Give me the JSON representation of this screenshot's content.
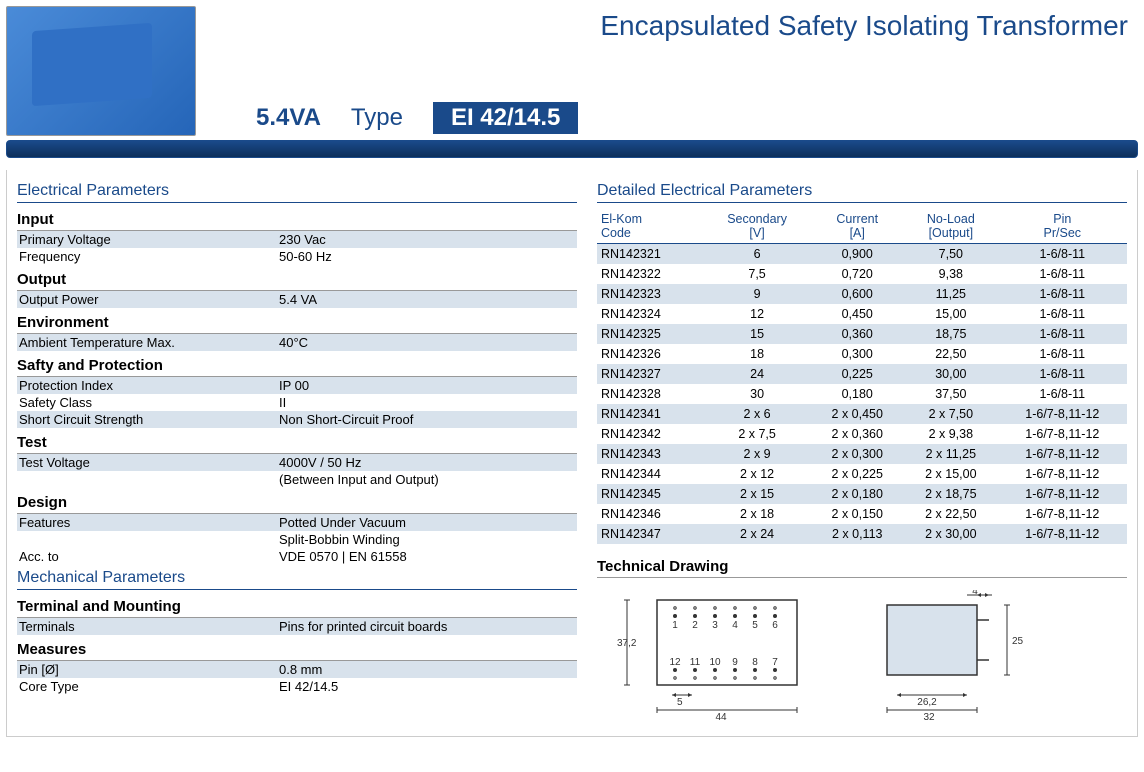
{
  "header": {
    "title": "Encapsulated Safety Isolating Transformer",
    "power": "5.4VA",
    "type_label": "Type",
    "type_value": "EI 42/14.5"
  },
  "electrical_title": "Electrical Parameters",
  "mechanical_title": "Mechanical Parameters",
  "detailed_title": "Detailed Electrical Parameters",
  "tech_drawing_title": "Technical Drawing",
  "sections": {
    "input": "Input",
    "output": "Output",
    "environment": "Environment",
    "safety": "Safty and Protection",
    "test": "Test",
    "design": "Design",
    "terminal": "Terminal and Mounting",
    "measures": "Measures"
  },
  "params": {
    "primary_voltage": {
      "label": "Primary Voltage",
      "value": "230 Vac"
    },
    "frequency": {
      "label": "Frequency",
      "value": "50-60 Hz"
    },
    "output_power": {
      "label": "Output Power",
      "value": "5.4 VA"
    },
    "ambient_temp": {
      "label": "Ambient Temperature Max.",
      "value": "40°C"
    },
    "protection_index": {
      "label": "Protection Index",
      "value": "IP 00"
    },
    "safety_class": {
      "label": "Safety Class",
      "value": "II"
    },
    "short_circuit": {
      "label": "Short Circuit Strength",
      "value": "Non Short-Circuit Proof"
    },
    "test_voltage": {
      "label": "Test Voltage",
      "value": "4000V / 50 Hz"
    },
    "test_voltage_note": "(Between Input and Output)",
    "features": {
      "label": "Features",
      "value": "Potted Under Vacuum"
    },
    "features_2": "Split-Bobbin Winding",
    "acc_to": {
      "label": "Acc. to",
      "value": "VDE 0570 | EN 61558"
    },
    "terminals": {
      "label": "Terminals",
      "value": "Pins for printed circuit boards"
    },
    "pin": {
      "label": "Pin [Ø]",
      "value": "0.8 mm"
    },
    "core_type": {
      "label": "Core Type",
      "value": "EI 42/14.5"
    }
  },
  "detail_headers": {
    "code": "El-Kom\nCode",
    "secondary": "Secondary\n[V]",
    "current": "Current\n[A]",
    "noload": "No-Load\n[Output]",
    "pin": "Pin\nPr/Sec"
  },
  "detail_rows": [
    {
      "code": "RN142321",
      "sec": "6",
      "cur": "0,900",
      "nl": "7,50",
      "pin": "1-6/8-11"
    },
    {
      "code": "RN142322",
      "sec": "7,5",
      "cur": "0,720",
      "nl": "9,38",
      "pin": "1-6/8-11"
    },
    {
      "code": "RN142323",
      "sec": "9",
      "cur": "0,600",
      "nl": "11,25",
      "pin": "1-6/8-11"
    },
    {
      "code": "RN142324",
      "sec": "12",
      "cur": "0,450",
      "nl": "15,00",
      "pin": "1-6/8-11"
    },
    {
      "code": "RN142325",
      "sec": "15",
      "cur": "0,360",
      "nl": "18,75",
      "pin": "1-6/8-11"
    },
    {
      "code": "RN142326",
      "sec": "18",
      "cur": "0,300",
      "nl": "22,50",
      "pin": "1-6/8-11"
    },
    {
      "code": "RN142327",
      "sec": "24",
      "cur": "0,225",
      "nl": "30,00",
      "pin": "1-6/8-11"
    },
    {
      "code": "RN142328",
      "sec": "30",
      "cur": "0,180",
      "nl": "37,50",
      "pin": "1-6/8-11"
    },
    {
      "code": "RN142341",
      "sec": "2 x 6",
      "cur": "2 x 0,450",
      "nl": "2 x 7,50",
      "pin": "1-6/7-8,11-12"
    },
    {
      "code": "RN142342",
      "sec": "2 x 7,5",
      "cur": "2 x 0,360",
      "nl": "2 x 9,38",
      "pin": "1-6/7-8,11-12"
    },
    {
      "code": "RN142343",
      "sec": "2 x 9",
      "cur": "2 x 0,300",
      "nl": "2 x 11,25",
      "pin": "1-6/7-8,11-12"
    },
    {
      "code": "RN142344",
      "sec": "2 x 12",
      "cur": "2 x 0,225",
      "nl": "2 x 15,00",
      "pin": "1-6/7-8,11-12"
    },
    {
      "code": "RN142345",
      "sec": "2 x 15",
      "cur": "2 x 0,180",
      "nl": "2 x 18,75",
      "pin": "1-6/7-8,11-12"
    },
    {
      "code": "RN142346",
      "sec": "2 x 18",
      "cur": "2 x 0,150",
      "nl": "2 x 22,50",
      "pin": "1-6/7-8,11-12"
    },
    {
      "code": "RN142347",
      "sec": "2 x 24",
      "cur": "2 x 0,113",
      "nl": "2 x 30,00",
      "pin": "1-6/7-8,11-12"
    }
  ],
  "drawing": {
    "top_pins": [
      "1",
      "2",
      "3",
      "4",
      "5",
      "6"
    ],
    "bottom_pins": [
      "12",
      "11",
      "10",
      "9",
      "8",
      "7"
    ],
    "dim_height": "37,2",
    "dim_pin_spacing": "5",
    "dim_width": "44",
    "dim_side_top": "4",
    "dim_side_h": "25",
    "dim_side_inner": "26,2",
    "dim_side_w": "32"
  },
  "colors": {
    "brand_blue": "#1a4a8a",
    "row_shade": "#d8e2ec"
  }
}
